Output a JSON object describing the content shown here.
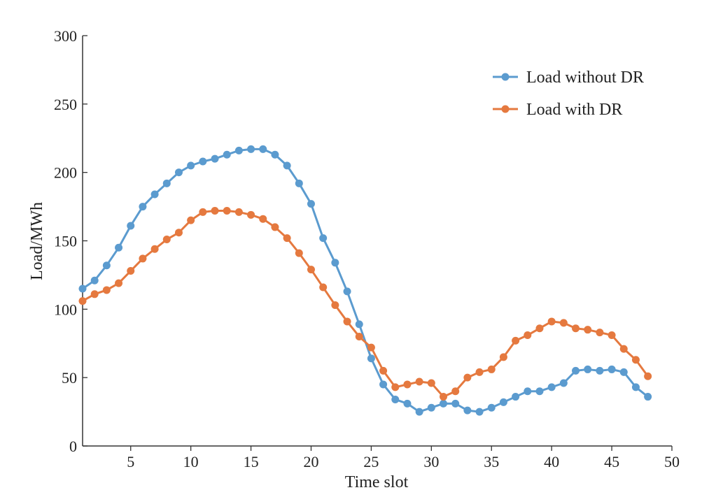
{
  "chart_data": {
    "type": "line",
    "title": "",
    "xlabel": "Time slot",
    "ylabel": "Load/MWh",
    "xlim": [
      1,
      50
    ],
    "ylim": [
      0,
      300
    ],
    "x_ticks": [
      5,
      10,
      15,
      20,
      25,
      30,
      35,
      40,
      45,
      50
    ],
    "y_ticks": [
      0,
      50,
      100,
      150,
      200,
      250,
      300
    ],
    "grid": false,
    "legend_position": "top-right",
    "x": [
      1,
      2,
      3,
      4,
      5,
      6,
      7,
      8,
      9,
      10,
      11,
      12,
      13,
      14,
      15,
      16,
      17,
      18,
      19,
      20,
      21,
      22,
      23,
      24,
      25,
      26,
      27,
      28,
      29,
      30,
      31,
      32,
      33,
      34,
      35,
      36,
      37,
      38,
      39,
      40,
      41,
      42,
      43,
      44,
      45,
      46,
      47,
      48
    ],
    "series": [
      {
        "name": "Load without DR",
        "color": "#5b9bcf",
        "values": [
          115,
          121,
          132,
          145,
          161,
          175,
          184,
          192,
          200,
          205,
          208,
          210,
          213,
          216,
          217,
          217,
          213,
          205,
          192,
          177,
          152,
          134,
          113,
          89,
          64,
          45,
          34,
          31,
          25,
          28,
          31,
          31,
          26,
          25,
          28,
          32,
          36,
          40,
          40,
          43,
          46,
          55,
          56,
          55,
          56,
          54,
          43,
          36
        ]
      },
      {
        "name": "Load with DR",
        "color": "#e5793f",
        "values": [
          106,
          111,
          114,
          119,
          128,
          137,
          144,
          151,
          156,
          165,
          171,
          172,
          172,
          171,
          169,
          166,
          160,
          152,
          141,
          129,
          116,
          103,
          91,
          80,
          72,
          55,
          43,
          45,
          47,
          46,
          36,
          40,
          50,
          54,
          56,
          65,
          77,
          81,
          86,
          91,
          90,
          86,
          85,
          83,
          81,
          71,
          63,
          51
        ]
      }
    ]
  }
}
